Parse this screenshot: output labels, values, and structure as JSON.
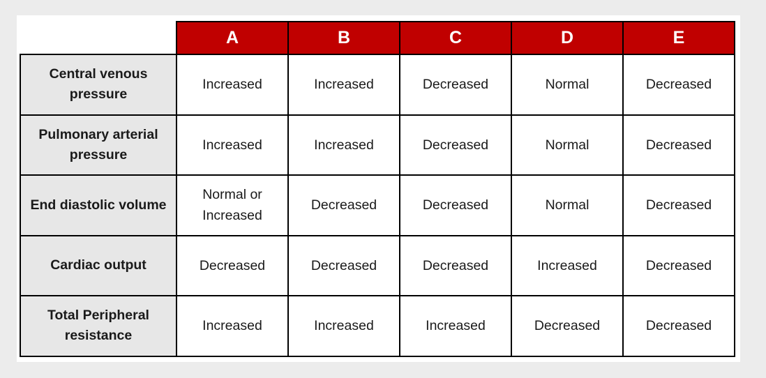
{
  "page": {
    "background_color": "#ececec",
    "panel_color": "#ffffff"
  },
  "table": {
    "header": {
      "background_color": "#c00000",
      "text_color": "#ffffff",
      "columns": [
        "A",
        "B",
        "C",
        "D",
        "E"
      ]
    },
    "row_header_background": "#e7e7e7",
    "border_color": "#000000",
    "rows": [
      {
        "label": "Central venous pressure",
        "values": [
          "Increased",
          "Increased",
          "Decreased",
          "Normal",
          "Decreased"
        ]
      },
      {
        "label": "Pulmonary arterial pressure",
        "values": [
          "Increased",
          "Increased",
          "Decreased",
          "Normal",
          "Decreased"
        ]
      },
      {
        "label": "End diastolic volume",
        "values": [
          "Normal or Increased",
          "Decreased",
          "Decreased",
          "Normal",
          "Decreased"
        ]
      },
      {
        "label": "Cardiac output",
        "values": [
          "Decreased",
          "Decreased",
          "Decreased",
          "Increased",
          "Decreased"
        ]
      },
      {
        "label": "Total Peripheral resistance",
        "values": [
          "Increased",
          "Increased",
          "Increased",
          "Decreased",
          "Decreased"
        ]
      }
    ]
  }
}
